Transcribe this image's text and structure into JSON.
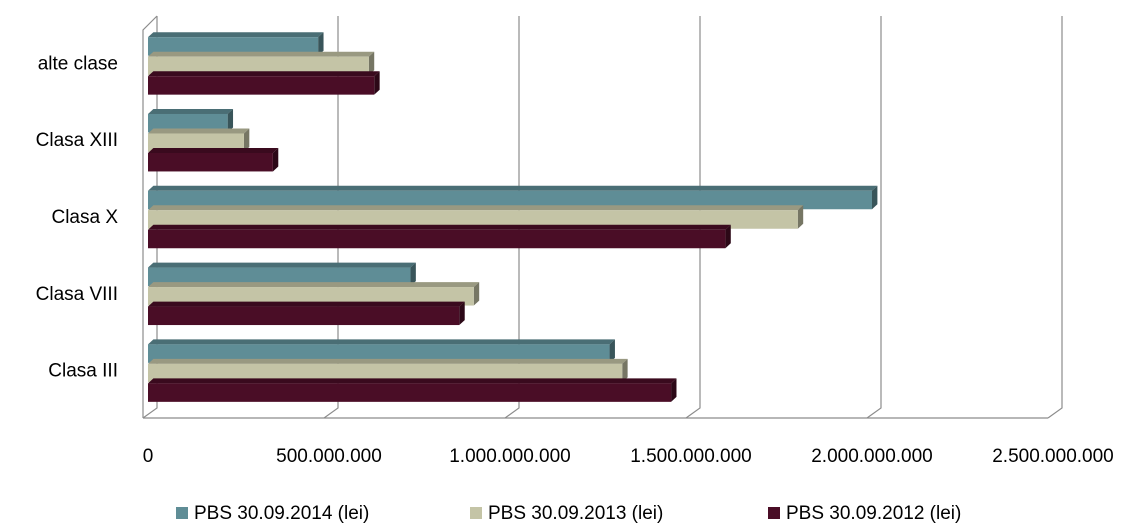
{
  "chart_data": {
    "type": "bar",
    "orientation": "horizontal",
    "style": "3d",
    "categories": [
      "alte  clase",
      "Clasa XIII",
      "Clasa X",
      "Clasa VIII",
      "Clasa III"
    ],
    "series": [
      {
        "name": "PBS 30.09.2014  (lei)",
        "color": "#5f8d96",
        "values": [
          470000000,
          220000000,
          2000000000,
          725000000,
          1275000000
        ]
      },
      {
        "name": "PBS 30.09.2013  (lei)",
        "color": "#c4c4a6",
        "values": [
          610000000,
          265000000,
          1795000000,
          900000000,
          1310000000
        ]
      },
      {
        "name": "PBS 30.09.2012 (lei)",
        "color": "#4a0d26",
        "values": [
          625000000,
          345000000,
          1595000000,
          860000000,
          1445000000
        ]
      }
    ],
    "xlim": [
      0,
      2500000000
    ],
    "xticks": [
      {
        "value": 0,
        "label": "0"
      },
      {
        "value": 500000000,
        "label": "500.000.000"
      },
      {
        "value": 1000000000,
        "label": "1.000.000.000"
      },
      {
        "value": 1500000000,
        "label": "1.500.000.000"
      },
      {
        "value": 2000000000,
        "label": "2.000.000.000"
      },
      {
        "value": 2500000000,
        "label": "2.500.000.000"
      }
    ],
    "grid": true,
    "legend_position": "bottom"
  }
}
